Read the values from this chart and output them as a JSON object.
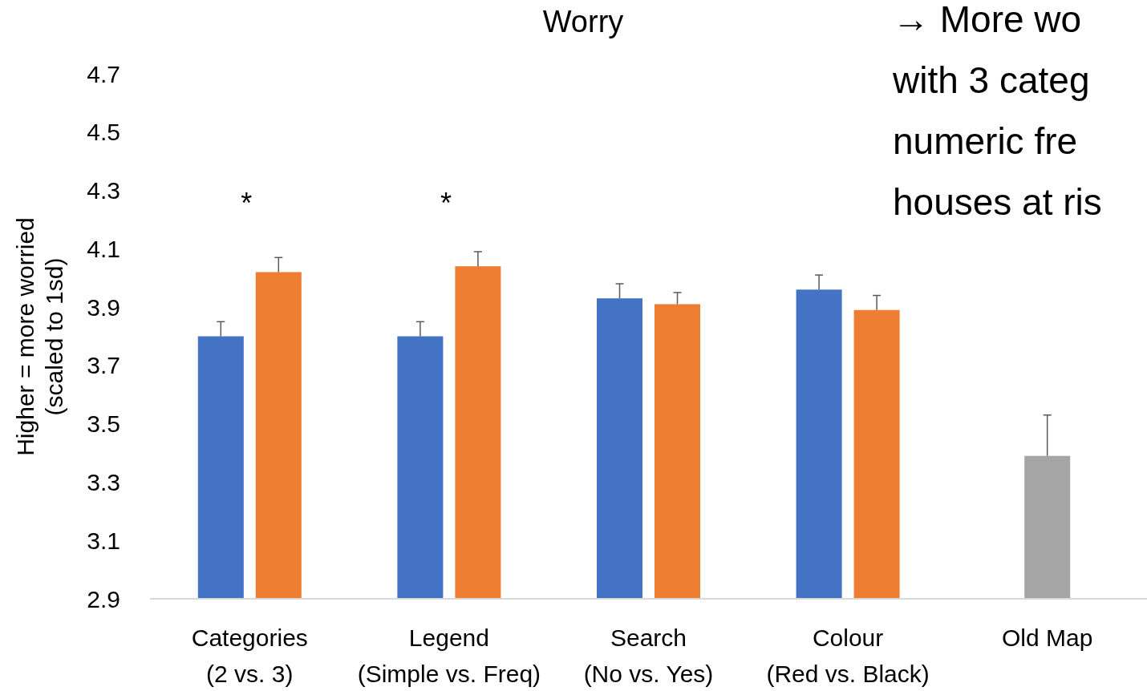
{
  "chart_data": {
    "type": "bar",
    "title": "Worry",
    "ylabel": "Higher = more worried\n(scaled to 1sd)",
    "categories": [
      "Categories\n(2 vs. 3)",
      "Legend\n(Simple vs. Freq)",
      "Search\n(No vs. Yes)",
      "Colour\n(Red vs. Black)",
      "Old Map"
    ],
    "series": [
      {
        "color": "#4472c4",
        "values": [
          3.8,
          3.8,
          3.93,
          3.96,
          null
        ],
        "errors": [
          [
            3.8,
            3.85
          ],
          [
            3.8,
            3.85
          ],
          [
            3.93,
            3.98
          ],
          [
            3.96,
            4.01
          ],
          null
        ]
      },
      {
        "color": "#ed7d31",
        "values": [
          4.02,
          4.04,
          3.91,
          3.89,
          null
        ],
        "errors": [
          [
            4.02,
            4.07
          ],
          [
            4.04,
            4.09
          ],
          [
            3.91,
            3.95
          ],
          [
            3.89,
            3.94
          ],
          null
        ]
      },
      {
        "color": "#a5a5a5",
        "values": [
          null,
          null,
          null,
          null,
          3.39
        ],
        "errors": [
          null,
          null,
          null,
          null,
          [
            3.39,
            3.53
          ]
        ]
      }
    ],
    "ylim": [
      2.9,
      4.7
    ],
    "yticks": [
      2.9,
      3.1,
      3.3,
      3.5,
      3.7,
      3.9,
      4.1,
      4.3,
      4.5,
      4.7
    ],
    "annotations": [
      "*",
      "*",
      "→ More wo\nwith 3 categ\nnumeric fre\nhouses at ris"
    ]
  }
}
